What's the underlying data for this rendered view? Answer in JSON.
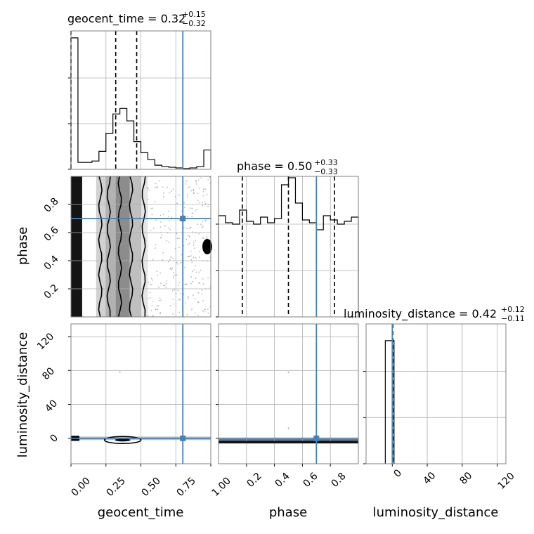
{
  "chart_data": {
    "type": "corner",
    "parameters": [
      "geocent_time",
      "phase",
      "luminosity_distance"
    ],
    "truths": {
      "geocent_time": 0.8,
      "phase": 0.7,
      "luminosity_distance": 0
    },
    "colors": {
      "truth": "#4682b4",
      "hist": "#000000",
      "grid": "#b0b0b0",
      "frame": "#808080"
    },
    "diagonal": [
      {
        "parameter": "geocent_time",
        "title": {
          "label": "geocent_time = 0.32",
          "plus": "+0.15",
          "minus": "−0.32"
        },
        "quantiles": [
          0.0,
          0.32,
          0.47
        ],
        "xlim": [
          0,
          1
        ],
        "bin_edges": [
          0,
          0.05,
          0.1,
          0.15,
          0.2,
          0.25,
          0.3,
          0.35,
          0.4,
          0.45,
          0.5,
          0.55,
          0.6,
          0.65,
          0.7,
          0.75,
          0.8,
          0.85,
          0.9,
          0.95,
          1.0
        ],
        "counts": [
          0.95,
          0.05,
          0.05,
          0.06,
          0.13,
          0.26,
          0.4,
          0.44,
          0.35,
          0.2,
          0.12,
          0.07,
          0.03,
          0.02,
          0.015,
          0.01,
          0.005,
          0.01,
          0.02,
          0.14
        ]
      },
      {
        "parameter": "phase",
        "title": {
          "label": "phase = 0.50",
          "plus": "+0.33",
          "minus": "−0.33"
        },
        "quantiles": [
          0.17,
          0.5,
          0.83
        ],
        "xlim": [
          0,
          1
        ],
        "bin_edges": [
          0,
          0.05,
          0.1,
          0.15,
          0.2,
          0.25,
          0.3,
          0.35,
          0.4,
          0.45,
          0.5,
          0.55,
          0.6,
          0.65,
          0.7,
          0.75,
          0.8,
          0.85,
          0.9,
          0.95,
          1.0
        ],
        "counts": [
          0.72,
          0.67,
          0.66,
          0.76,
          0.68,
          0.66,
          0.71,
          0.67,
          0.7,
          0.94,
          0.99,
          0.81,
          0.69,
          0.67,
          0.62,
          0.72,
          0.69,
          0.66,
          0.68,
          0.71
        ]
      },
      {
        "parameter": "luminosity_distance",
        "title": {
          "label": "luminosity_distance = 0.42",
          "plus": "+0.12",
          "minus": "−0.11"
        },
        "quantiles": [
          0.31,
          0.42,
          0.54
        ],
        "xlim": [
          -30,
          130
        ],
        "xticks": [
          0,
          40,
          80,
          120
        ],
        "bin_edges": [
          -8,
          -1,
          2
        ],
        "counts": [
          0.88,
          0.88
        ]
      }
    ],
    "panels_2d": [
      {
        "x": "geocent_time",
        "y": "phase",
        "xlim": [
          0,
          1
        ],
        "ylim": [
          0,
          1
        ],
        "yticks": [
          0.2,
          0.4,
          0.6,
          0.8
        ]
      },
      {
        "x": "geocent_time",
        "y": "luminosity_distance",
        "xlim": [
          0,
          1
        ],
        "ylim": [
          -30,
          135
        ],
        "yticks": [
          0,
          40,
          80,
          120
        ]
      },
      {
        "x": "phase",
        "y": "luminosity_distance",
        "xlim": [
          0,
          1
        ],
        "ylim": [
          -30,
          135
        ]
      }
    ],
    "x_axes": [
      {
        "parameter": "geocent_time",
        "ticks": [
          0.0,
          0.25,
          0.5,
          0.75,
          1.0
        ],
        "tick_labels": [
          "0.00",
          "0.25",
          "0.50",
          "0.75",
          "1.00"
        ]
      },
      {
        "parameter": "phase",
        "ticks": [
          0.2,
          0.4,
          0.6,
          0.8
        ],
        "tick_labels": [
          "0.2",
          "0.4",
          "0.6",
          "0.8"
        ]
      },
      {
        "parameter": "luminosity_distance",
        "ticks": [
          0,
          40,
          80,
          120
        ],
        "tick_labels": [
          "0",
          "40",
          "80",
          "120"
        ]
      }
    ],
    "y_axes": [
      {
        "parameter": "phase",
        "tick_labels": [
          "0.2",
          "0.4",
          "0.6",
          "0.8"
        ]
      },
      {
        "parameter": "luminosity_distance",
        "tick_labels": [
          "0",
          "40",
          "80",
          "120"
        ]
      }
    ],
    "axis_labels": {
      "x": [
        "geocent_time",
        "phase",
        "luminosity_distance"
      ],
      "y": [
        "phase",
        "luminosity_distance"
      ]
    },
    "grid": true
  }
}
